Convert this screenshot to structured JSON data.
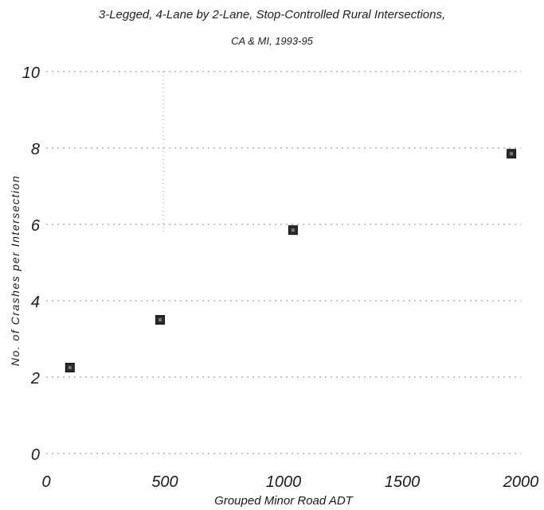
{
  "chart_data": {
    "type": "scatter",
    "title": "3-Legged, 4-Lane by 2-Lane, Stop-Controlled Rural Intersections,",
    "subtitle": "CA & MI, 1993-95",
    "xlabel": "Grouped Minor Road ADT",
    "ylabel": "No. of Crashes per Intersection",
    "xlim": [
      0,
      2000
    ],
    "ylim": [
      0,
      10
    ],
    "x_ticks": [
      "0",
      "500",
      "1000",
      "1500",
      "2000"
    ],
    "y_ticks": [
      "0",
      "2",
      "4",
      "6",
      "8",
      "10"
    ],
    "grid": true,
    "marker_color": "#2a2a2a",
    "points": [
      {
        "x": 100,
        "y": 2.25
      },
      {
        "x": 480,
        "y": 3.5
      },
      {
        "x": 1040,
        "y": 5.85
      },
      {
        "x": 1960,
        "y": 7.85
      }
    ]
  }
}
